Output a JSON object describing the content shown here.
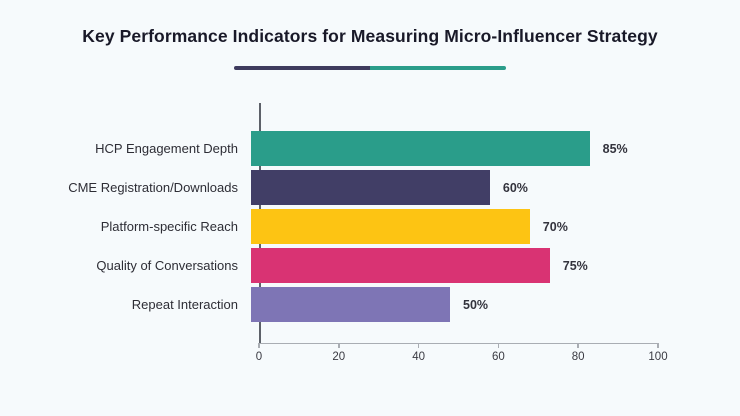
{
  "header": {
    "title": "Key Performance Indicators for Measuring Micro-Influencer Strategy",
    "divider_colors": [
      "#3e3b5e",
      "#2a9d8a"
    ]
  },
  "colors": {
    "background": "#f6fafc",
    "title_text": "#191928",
    "category_label_text": "#2d2d35",
    "value_label_text": "#33333d",
    "y_axis_line": "#5d6169",
    "x_axis_line": "#a9adb3"
  },
  "chart_data": {
    "type": "bar",
    "orientation": "horizontal",
    "title": "Key Performance Indicators for Measuring Micro-Influencer Strategy",
    "categories": [
      "HCP Engagement Depth",
      "CME Registration/Downloads",
      "Platform-specific Reach",
      "Quality of Conversations",
      "Repeat Interaction"
    ],
    "values": [
      85,
      60,
      70,
      75,
      50
    ],
    "value_labels": [
      "85%",
      "60%",
      "70%",
      "75%",
      "50%"
    ],
    "bar_colors": [
      "#2a9d8a",
      "#413e66",
      "#fdc413",
      "#d93373",
      "#7e75b5"
    ],
    "xlabel": "",
    "ylabel": "",
    "xlim": [
      0,
      100
    ],
    "x_ticks": [
      0,
      20,
      40,
      60,
      80,
      100
    ],
    "grid": false,
    "legend": "none"
  }
}
